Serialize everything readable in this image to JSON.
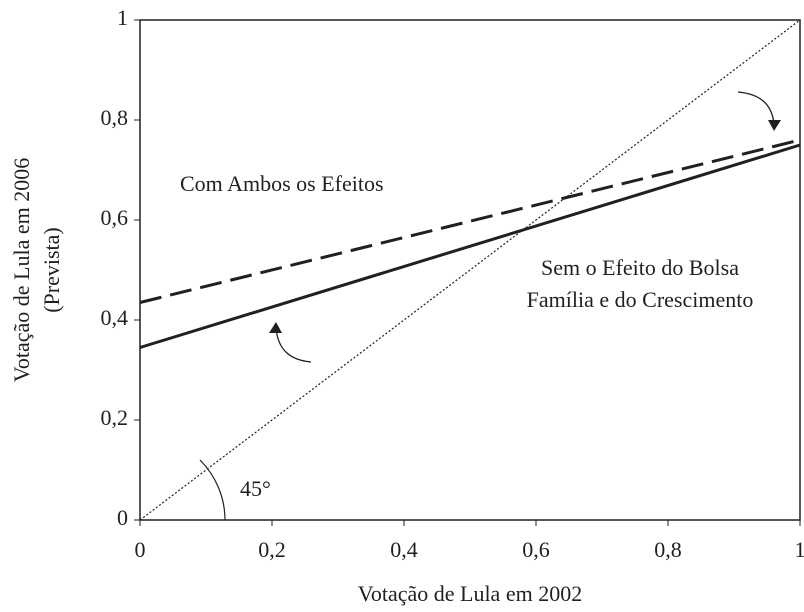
{
  "chart_data": {
    "type": "line",
    "xlabel": "Votação de Lula em 2002",
    "ylabel": [
      "Votação de Lula em 2006",
      "(Prevista)"
    ],
    "xlim": [
      0,
      1
    ],
    "ylim": [
      0,
      1
    ],
    "xticks": [
      0,
      {
        "value": 0.2,
        "label": "0,2"
      },
      {
        "value": 0.4,
        "label": "0,4"
      },
      {
        "value": 0.6,
        "label": "0,6"
      },
      {
        "value": 0.8,
        "label": "0,8"
      },
      1
    ],
    "yticks": [
      0,
      {
        "value": 0.2,
        "label": "0,2"
      },
      {
        "value": 0.4,
        "label": "0,4"
      },
      {
        "value": 0.6,
        "label": "0,6"
      },
      {
        "value": 0.8,
        "label": "0,8"
      },
      1
    ],
    "series": [
      {
        "x": [
          0,
          1
        ],
        "values": [
          0.435,
          0.76
        ],
        "color": "#231f20",
        "style": "dashed"
      },
      {
        "x": [
          0,
          1
        ],
        "values": [
          0.345,
          0.75
        ],
        "color": "#231f20",
        "style": "solid"
      },
      {
        "x": [
          0,
          1
        ],
        "values": [
          0,
          1
        ],
        "color": "#231f20",
        "style": "dotted"
      }
    ],
    "annotations": [
      {
        "lines": [
          "Com Ambos os Efeitos"
        ]
      },
      {
        "lines": [
          "Sem o Efeito do Bolsa",
          "Família e do Crescimento"
        ]
      },
      {
        "lines": [
          "45°"
        ]
      }
    ]
  }
}
